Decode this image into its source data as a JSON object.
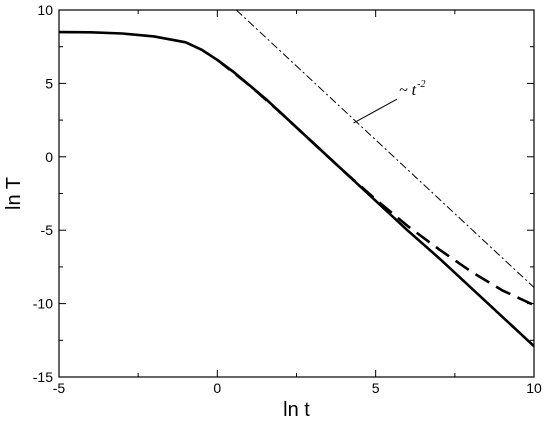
{
  "chart_data": {
    "type": "line",
    "xlabel": "ln t",
    "ylabel": "ln T",
    "xlim": [
      -5,
      10
    ],
    "ylim": [
      -15,
      10
    ],
    "x_ticks": [
      "-5",
      "0",
      "5",
      "10"
    ],
    "y_ticks": [
      "10",
      "5",
      "0",
      "-5",
      "-10",
      "-15"
    ],
    "grid": false,
    "series": [
      {
        "style": "solid",
        "color": "#000000",
        "x": [
          -5,
          -4,
          -3,
          -2,
          -1,
          -0.5,
          0,
          0.5,
          1,
          1.5,
          2,
          3,
          4,
          5,
          6,
          7,
          8,
          9,
          10
        ],
        "y": [
          8.5,
          8.48,
          8.4,
          8.2,
          7.8,
          7.3,
          6.6,
          5.8,
          4.9,
          4.0,
          3.0,
          1.0,
          -1.0,
          -3.0,
          -5.0,
          -6.9,
          -8.9,
          -10.9,
          -12.9
        ]
      },
      {
        "style": "dashed",
        "color": "#000000",
        "x": [
          0,
          1,
          2,
          3,
          4,
          5,
          6,
          7,
          8,
          9,
          10
        ],
        "y": [
          6.6,
          4.9,
          3.0,
          1.0,
          -1.0,
          -2.9,
          -4.7,
          -6.3,
          -7.8,
          -9.1,
          -10.1
        ]
      },
      {
        "style": "dash-dot",
        "color": "#000000",
        "x": [
          0.6,
          10
        ],
        "y": [
          10,
          -8.9
        ]
      }
    ],
    "annotations": [
      {
        "text": "~ t",
        "superscript": "-2",
        "x": 5.8,
        "y": 4.2,
        "pointer_to": [
          4.3,
          2.3
        ]
      }
    ]
  }
}
